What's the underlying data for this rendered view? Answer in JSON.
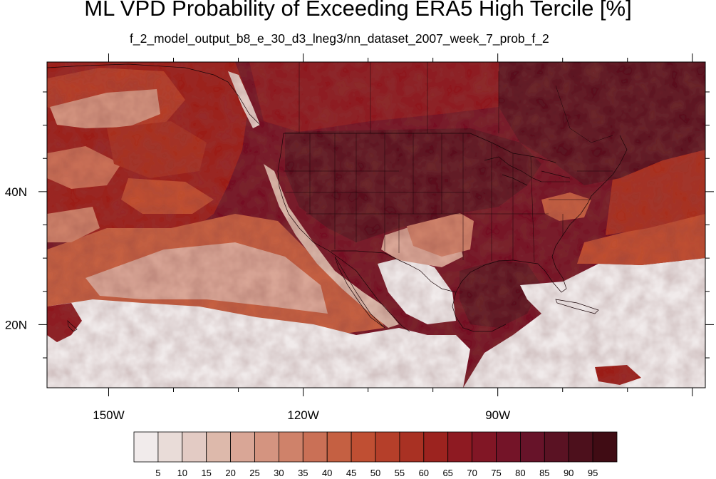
{
  "title": "ML VPD Probability of Exceeding ERA5 High Tercile [%]",
  "subtitle": "f_2_model_output_b8_e_30_d3_lneg3/nn_dataset_2007_week_7_prob_f_2",
  "map": {
    "projection": "cylindrical equidistant",
    "lon_range": [
      -159.5,
      -58
    ],
    "lat_range": [
      10.5,
      59.5
    ],
    "lon_ticks": [
      {
        "value": -150,
        "label": "150W"
      },
      {
        "value": -120,
        "label": "120W"
      },
      {
        "value": -90,
        "label": "90W"
      }
    ],
    "lat_ticks": [
      {
        "value": 40,
        "label": "40N"
      },
      {
        "value": 20,
        "label": "20N"
      }
    ],
    "field": "probability of exceeding ERA5 high tercile",
    "units": "%"
  },
  "colorbar": {
    "labels": [
      "5",
      "10",
      "15",
      "20",
      "25",
      "30",
      "35",
      "40",
      "45",
      "50",
      "55",
      "60",
      "65",
      "70",
      "75",
      "80",
      "85",
      "90",
      "95"
    ],
    "colors": [
      "#f1ebeb",
      "#e9dcd8",
      "#e3cbc4",
      "#ddb9ab",
      "#d9a696",
      "#d49480",
      "#cf826a",
      "#ca7056",
      "#c56042",
      "#c04f33",
      "#b53f2a",
      "#a93123",
      "#9c231f",
      "#8e1a22",
      "#811625",
      "#741428",
      "#671329",
      "#5a1223",
      "#4d101c",
      "#400c14"
    ]
  }
}
